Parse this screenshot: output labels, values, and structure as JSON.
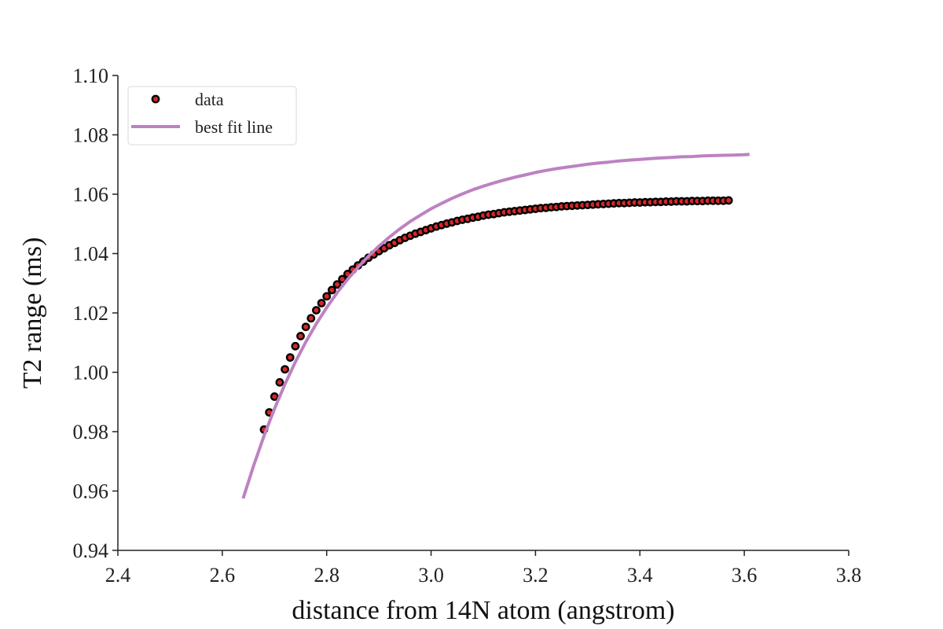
{
  "chart_data": {
    "type": "scatter",
    "title": "",
    "xlabel": "distance from 14N atom (angstrom)",
    "ylabel": "T2 range (ms)",
    "xlim": [
      2.4,
      3.8
    ],
    "ylim": [
      0.94,
      1.1
    ],
    "xticks": [
      "2.4",
      "2.6",
      "2.8",
      "3.0",
      "3.2",
      "3.4",
      "3.6",
      "3.8"
    ],
    "yticks": [
      "0.94",
      "0.96",
      "0.98",
      "1.00",
      "1.02",
      "1.04",
      "1.06",
      "1.08",
      "1.10"
    ],
    "grid": false,
    "legend_position": "top-left",
    "series": [
      {
        "name": "data",
        "kind": "scatter",
        "marker_face": "#d62728",
        "marker_edge": "#000000",
        "x": [
          2.68,
          2.69,
          2.7,
          2.71,
          2.72,
          2.73,
          2.74,
          2.75,
          2.76,
          2.77,
          2.78,
          2.79,
          2.8,
          2.81,
          2.82,
          2.83,
          2.84,
          2.85,
          2.86,
          2.87,
          2.88,
          2.89,
          2.9,
          2.91,
          2.92,
          2.93,
          2.94,
          2.95,
          2.96,
          2.97,
          2.98,
          2.99,
          3.0,
          3.01,
          3.02,
          3.03,
          3.04,
          3.05,
          3.06,
          3.07,
          3.08,
          3.09,
          3.1,
          3.11,
          3.12,
          3.13,
          3.14,
          3.15,
          3.16,
          3.17,
          3.18,
          3.19,
          3.2,
          3.21,
          3.22,
          3.23,
          3.24,
          3.25,
          3.26,
          3.27,
          3.28,
          3.29,
          3.3,
          3.31,
          3.32,
          3.33,
          3.34,
          3.35,
          3.36,
          3.37,
          3.38,
          3.39,
          3.4,
          3.41,
          3.42,
          3.43,
          3.44,
          3.45,
          3.46,
          3.47,
          3.48,
          3.49,
          3.5,
          3.51,
          3.52,
          3.53,
          3.54,
          3.55,
          3.56,
          3.57
        ],
        "y": [
          0.9807,
          0.9865,
          0.9918,
          0.9966,
          1.001,
          1.005,
          1.0088,
          1.0122,
          1.0153,
          1.0182,
          1.0209,
          1.0233,
          1.0256,
          1.0277,
          1.0296,
          1.0314,
          1.0331,
          1.0346,
          1.036,
          1.0373,
          1.0386,
          1.0397,
          1.0408,
          1.0418,
          1.0428,
          1.0436,
          1.0445,
          1.0453,
          1.046,
          1.0467,
          1.0473,
          1.0479,
          1.0485,
          1.0491,
          1.0496,
          1.0501,
          1.0505,
          1.051,
          1.0514,
          1.0517,
          1.0521,
          1.0524,
          1.0528,
          1.0531,
          1.0533,
          1.0536,
          1.0539,
          1.0541,
          1.0543,
          1.0545,
          1.0547,
          1.0549,
          1.0551,
          1.0553,
          1.0554,
          1.0556,
          1.0557,
          1.0559,
          1.056,
          1.0561,
          1.0562,
          1.0563,
          1.0564,
          1.0565,
          1.0566,
          1.0567,
          1.0568,
          1.0569,
          1.057,
          1.057,
          1.0571,
          1.0572,
          1.0572,
          1.0573,
          1.0573,
          1.0574,
          1.0574,
          1.0575,
          1.0575,
          1.0576,
          1.0576,
          1.0576,
          1.0577,
          1.0577,
          1.0577,
          1.0578,
          1.0578,
          1.0578,
          1.0578,
          1.0579
        ]
      },
      {
        "name": "best fit line",
        "kind": "line",
        "color": "#bd82c2",
        "x": [
          2.64,
          2.66,
          2.68,
          2.7,
          2.72,
          2.74,
          2.76,
          2.78,
          2.8,
          2.82,
          2.84,
          2.86,
          2.88,
          2.9,
          2.92,
          2.94,
          2.96,
          2.98,
          3.0,
          3.02,
          3.04,
          3.06,
          3.08,
          3.1,
          3.12,
          3.14,
          3.16,
          3.18,
          3.2,
          3.22,
          3.24,
          3.26,
          3.28,
          3.3,
          3.32,
          3.34,
          3.36,
          3.38,
          3.4,
          3.42,
          3.44,
          3.46,
          3.48,
          3.5,
          3.52,
          3.54,
          3.56,
          3.58,
          3.6,
          3.61
        ],
        "y": [
          0.9575,
          0.9685,
          0.9786,
          0.9877,
          0.996,
          1.0035,
          1.0102,
          1.0163,
          1.0218,
          1.0268,
          1.0313,
          1.0354,
          1.0391,
          1.0425,
          1.0455,
          1.0483,
          1.0508,
          1.053,
          1.0551,
          1.0569,
          1.0586,
          1.0601,
          1.0615,
          1.0627,
          1.0638,
          1.0648,
          1.0657,
          1.0665,
          1.0673,
          1.068,
          1.0686,
          1.0691,
          1.0696,
          1.0701,
          1.0705,
          1.0708,
          1.0712,
          1.0715,
          1.0717,
          1.072,
          1.0722,
          1.0724,
          1.0726,
          1.0727,
          1.0729,
          1.073,
          1.0731,
          1.0732,
          1.0733,
          1.0734
        ]
      }
    ]
  }
}
